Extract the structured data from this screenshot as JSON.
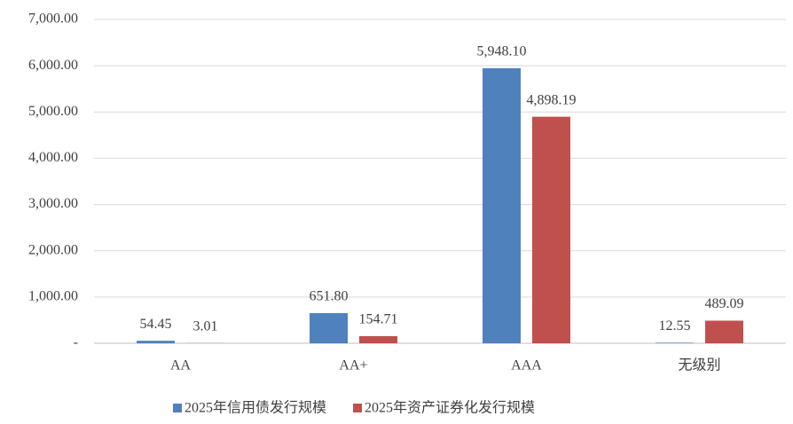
{
  "chart_data": {
    "type": "bar",
    "categories": [
      "AA",
      "AA+",
      "AAA",
      "无级别"
    ],
    "series": [
      {
        "name": "2025年信用债发行规模",
        "color": "#4f81bd",
        "values": [
          54.45,
          651.8,
          5948.1,
          12.55
        ],
        "value_labels": [
          "54.45",
          "651.80",
          "5,948.10",
          "12.55"
        ]
      },
      {
        "name": "2025年资产证券化发行规模",
        "color": "#c0504d",
        "values": [
          3.01,
          154.71,
          4898.19,
          489.09
        ],
        "value_labels": [
          "3.01",
          "154.71",
          "4,898.19",
          "489.09"
        ]
      }
    ],
    "ylim": [
      0,
      7000
    ],
    "yticks": [
      {
        "value": 0,
        "label": "-"
      },
      {
        "value": 1000,
        "label": "1,000.00"
      },
      {
        "value": 2000,
        "label": "2,000.00"
      },
      {
        "value": 3000,
        "label": "3,000.00"
      },
      {
        "value": 4000,
        "label": "4,000.00"
      },
      {
        "value": 5000,
        "label": "5,000.00"
      },
      {
        "value": 6000,
        "label": "6,000.00"
      },
      {
        "value": 7000,
        "label": "7,000.00"
      }
    ],
    "grid": true,
    "legend": "bottom"
  }
}
